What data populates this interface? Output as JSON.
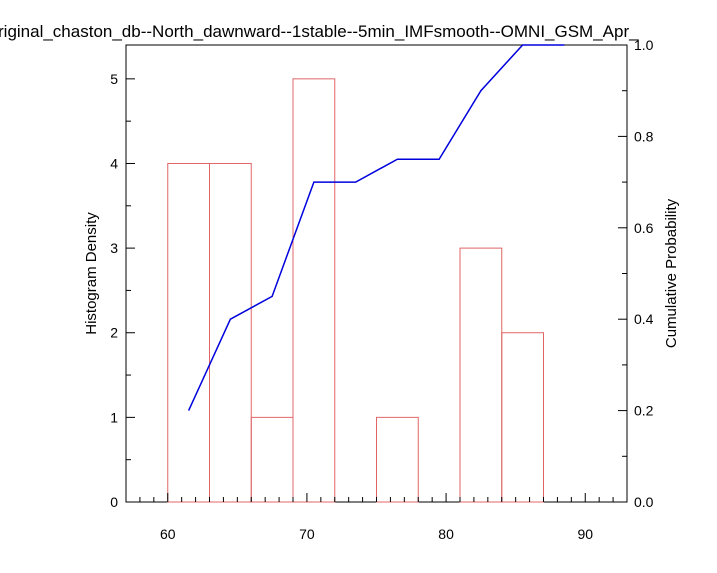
{
  "chart_data": {
    "type": "bar",
    "title": "riginal_chaston_db--North_dawnward--1stable--5min_IMFsmooth--OMNI_GSM_Apr_",
    "xlabel": "",
    "ylabel": "Histogram Density",
    "y2label": "Cumulative Probability",
    "xlim": [
      57,
      93
    ],
    "ylim": [
      0,
      5.4
    ],
    "y2lim": [
      0,
      1.0
    ],
    "xticks": [
      60,
      70,
      80,
      90
    ],
    "yticks": [
      0,
      1,
      2,
      3,
      4,
      5
    ],
    "y2ticks": [
      "0.0",
      "0.2",
      "0.4",
      "0.6",
      "0.8",
      "1.0"
    ],
    "histogram": {
      "name": "Histogram Density",
      "color": "#e06666",
      "bins": [
        {
          "x0": 60,
          "x1": 63,
          "value": 4
        },
        {
          "x0": 63,
          "x1": 66,
          "value": 4
        },
        {
          "x0": 66,
          "x1": 69,
          "value": 1
        },
        {
          "x0": 69,
          "x1": 72,
          "value": 5
        },
        {
          "x0": 72,
          "x1": 75,
          "value": 0
        },
        {
          "x0": 75,
          "x1": 78,
          "value": 1
        },
        {
          "x0": 78,
          "x1": 81,
          "value": 0
        },
        {
          "x0": 81,
          "x1": 84,
          "value": 3
        },
        {
          "x0": 84,
          "x1": 87,
          "value": 2
        }
      ]
    },
    "cumulative": {
      "name": "Cumulative Probability",
      "color": "#0000dd",
      "x": [
        61.5,
        64.5,
        67.5,
        70.5,
        73.5,
        76.5,
        79.5,
        82.5,
        85.5,
        88.5
      ],
      "y": [
        0.2,
        0.4,
        0.45,
        0.7,
        0.7,
        0.75,
        0.75,
        0.9,
        1.0,
        1.0
      ]
    },
    "grid": false,
    "legend": "none"
  }
}
